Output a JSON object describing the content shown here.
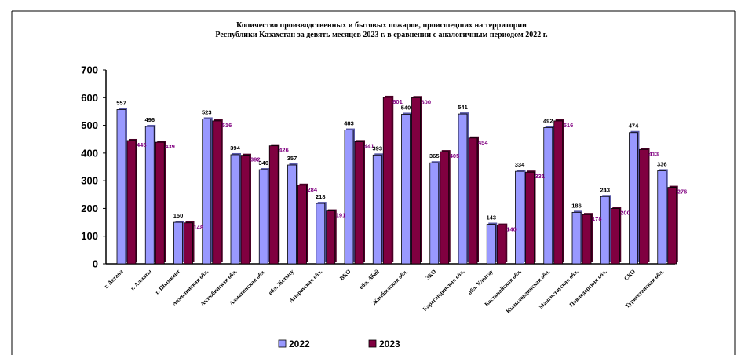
{
  "chart_data": {
    "type": "bar",
    "title": [
      "Количество производственных и бытовых пожаров, происшедших на территории",
      "Республики Казахстан за девять месяцев 2023 г. в сравнении с аналогичным периодом 2022 г."
    ],
    "ylim": [
      0,
      700
    ],
    "yticks": [
      "0",
      "100",
      "200",
      "300",
      "400",
      "500",
      "600",
      "700"
    ],
    "categories": [
      "г. Астана",
      "г. Алматы",
      "г. Шымкент",
      "Акмолинская обл.",
      "Актюбинская обл.",
      "Алматинская обл.",
      "обл. Жетысу",
      "Атырауская обл.",
      "ВКО",
      "обл. Абай",
      "Жамбылская обл.",
      "ЗКО",
      "Карагандинская обл.",
      "обл. Ұлытау",
      "Костанайская обл.",
      "Кызылординская обл.",
      "Мангистауская обл.",
      "Павлодарская обл.",
      "СКО",
      "Туркестанская обл."
    ],
    "series": [
      {
        "name": "2022",
        "color": "#9999ff",
        "values": [
          557,
          496,
          150,
          523,
          394,
          340,
          357,
          218,
          483,
          393,
          540,
          365,
          541,
          143,
          334,
          492,
          186,
          243,
          474,
          336
        ]
      },
      {
        "name": "2023",
        "color": "#800040",
        "values": [
          445,
          439,
          148,
          516,
          392,
          426,
          284,
          191,
          441,
          601,
          600,
          405,
          454,
          140,
          331,
          516,
          178,
          200,
          413,
          276
        ]
      }
    ],
    "legend_position": "bottom"
  }
}
